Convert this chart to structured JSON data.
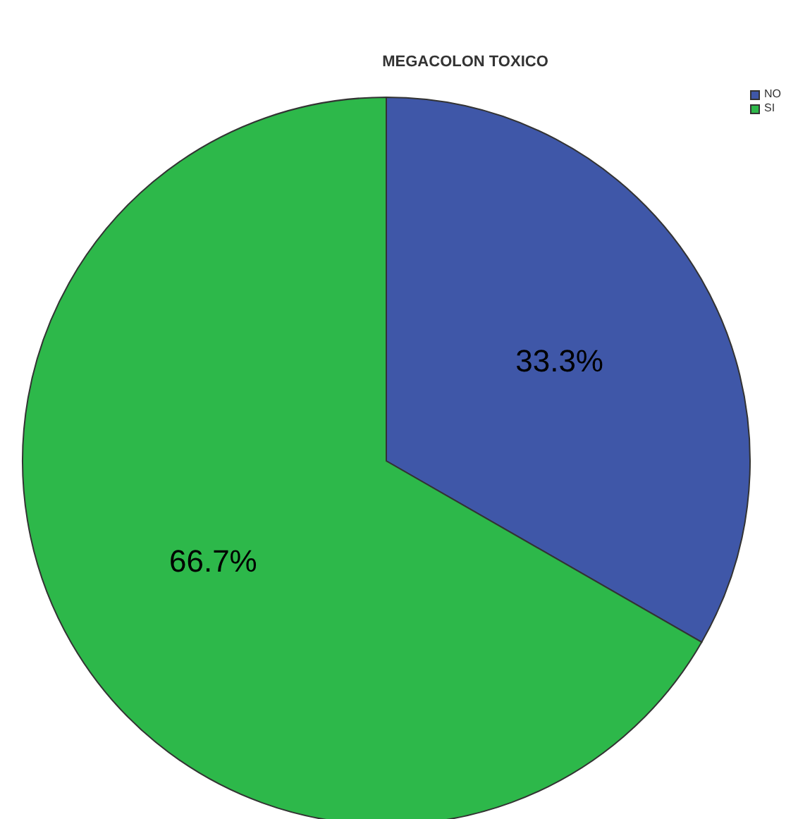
{
  "chart_data": {
    "type": "pie",
    "title": "MEGACOLON TOXICO",
    "categories": [
      "NO",
      "SI"
    ],
    "values": [
      33.3,
      66.7
    ],
    "colors": [
      "#3f57a8",
      "#2db84a"
    ],
    "value_labels": [
      "33.3%",
      "66.7%"
    ],
    "legend": "top right"
  }
}
